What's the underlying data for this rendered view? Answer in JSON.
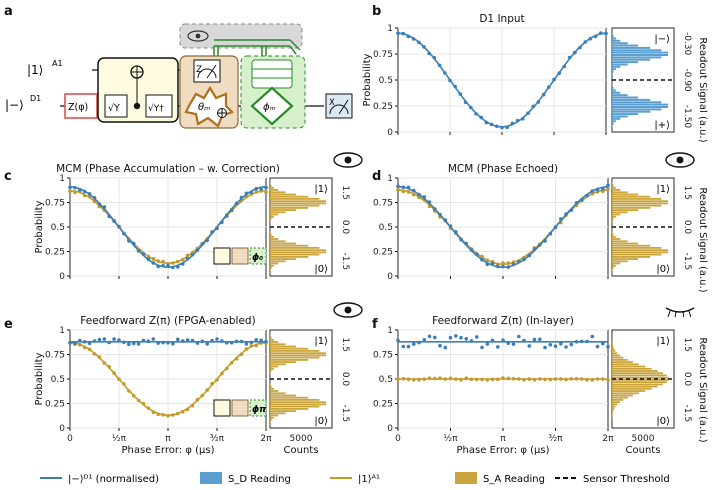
{
  "panel_letters": {
    "a": "a",
    "b": "b",
    "c": "c",
    "d": "d",
    "e": "e",
    "f": "f"
  },
  "circuit": {
    "ket_a1": "|1⟩",
    "ket_a1_sup": "A1",
    "ket_d1": "|−⟩",
    "ket_d1_sup": "D1",
    "z_gate": "Z(φ)",
    "sqrt_y": "√Y",
    "sqrt_y_dag": "√Y†",
    "theta": "θₘ",
    "phi": "ϕₘ",
    "z_meas": "Z",
    "x_meas": "X"
  },
  "colors": {
    "blue": "#3a7fb8",
    "gold": "#c39a2a",
    "hist_blue": "#5b9fd0",
    "hist_gold": "#caa43c"
  },
  "panels": {
    "b": {
      "title": "D1 Input",
      "ylabel": "Probability",
      "side_top": "|−⟩",
      "side_bot": "|+⟩",
      "hist_ticks": [
        "-0.30",
        "-0.90",
        "-1.50"
      ],
      "yticks": [
        "0",
        "0.25",
        "0.5",
        "0.75",
        "1"
      ]
    },
    "c": {
      "title": "MCM (Phase Accumulation – w. Correction)",
      "ylabel": "Probability",
      "side_top": "|1⟩",
      "side_bot": "|0⟩",
      "hist_ticks": [
        "1.5",
        "0.0",
        "-1.5"
      ],
      "badge": "ϕ₀",
      "yticks": [
        "0",
        "0.25",
        "0.5",
        "0.75",
        "1"
      ]
    },
    "d": {
      "title": "MCM (Phase Echoed)",
      "side_top": "|1⟩",
      "side_bot": "|0⟩",
      "hist_ticks": [
        "1.5",
        "0.0",
        "-1.5"
      ],
      "yticks": [
        "0",
        "0.25",
        "0.5",
        "0.75",
        "1"
      ]
    },
    "e": {
      "title": "Feedforward Z(π) (FPGA-enabled)",
      "ylabel": "Probability",
      "side_top": "|1⟩",
      "side_bot": "|0⟩",
      "hist_ticks": [
        "1.5",
        "0.0",
        "-1.5"
      ],
      "badge": "ϕπ",
      "yticks": [
        "0",
        "0.25",
        "0.5",
        "0.75",
        "1"
      ],
      "xlabel": "Phase Error: φ (μs)",
      "counts_label": "Counts",
      "counts_tick": "5000"
    },
    "f": {
      "title": "Feedforward Z(π) (In-layer)",
      "side_top": "|1⟩",
      "side_bot": "|0⟩",
      "hist_ticks": [
        "1.5",
        "0.0",
        "-1.5"
      ],
      "yticks": [
        "0",
        "0.25",
        "0.5",
        "0.75",
        "1"
      ],
      "xlabel": "Phase Error: φ (μs)",
      "counts_label": "Counts",
      "counts_tick": "5000"
    }
  },
  "readout_label": "Readout Signal (a.u.)",
  "xticks": [
    "0",
    "½π",
    "π",
    "³⁄₂π",
    "2π"
  ],
  "legend": [
    {
      "label": "|−⟩ᴰ¹ (normalised)",
      "kind": "line",
      "color": "#3a7fb8"
    },
    {
      "label": "S_D Reading",
      "kind": "patch",
      "color": "#5b9fd0"
    },
    {
      "label": "|1⟩ᴬ¹",
      "kind": "line",
      "color": "#c39a2a"
    },
    {
      "label": "S_A Reading",
      "kind": "patch",
      "color": "#caa43c"
    },
    {
      "label": "Sensor Threshold",
      "kind": "dash",
      "color": "#111"
    }
  ],
  "chart_data": [
    {
      "panel": "b",
      "type": "line",
      "title": "D1 Input",
      "ylabel": "Probability",
      "ylim": [
        0,
        1
      ],
      "xlim": [
        0,
        6.283
      ],
      "series": [
        {
          "name": "|−⟩ᴰ¹ (normalised)",
          "model": "0.5+0.45cos(x)",
          "x": [
            0,
            0.785,
            1.571,
            2.356,
            3.142,
            3.927,
            4.712,
            5.498,
            6.283
          ],
          "values": [
            0.95,
            0.82,
            0.5,
            0.18,
            0.05,
            0.18,
            0.5,
            0.82,
            0.95
          ]
        }
      ]
    },
    {
      "panel": "c",
      "type": "line",
      "title": "MCM (Phase Accumulation – w. Correction)",
      "ylabel": "Probability",
      "ylim": [
        0,
        1
      ],
      "xlim": [
        0,
        6.283
      ],
      "series": [
        {
          "name": "|−⟩ᴰ¹ (normalised)",
          "x": [
            0,
            0.785,
            1.571,
            2.356,
            3.142,
            3.927,
            4.712,
            5.498,
            6.283
          ],
          "values": [
            0.92,
            0.77,
            0.5,
            0.23,
            0.1,
            0.23,
            0.5,
            0.77,
            0.92
          ]
        },
        {
          "name": "|1⟩ᴬ¹",
          "x": [
            0,
            0.785,
            1.571,
            2.356,
            3.142,
            3.927,
            4.712,
            5.498,
            6.283
          ],
          "values": [
            0.88,
            0.76,
            0.5,
            0.26,
            0.14,
            0.26,
            0.5,
            0.76,
            0.88
          ]
        }
      ]
    },
    {
      "panel": "d",
      "type": "line",
      "title": "MCM (Phase Echoed)",
      "ylim": [
        0,
        1
      ],
      "xlim": [
        0,
        6.283
      ],
      "series": [
        {
          "name": "|−⟩ᴰ¹ (normalised)",
          "x": [
            0,
            0.785,
            1.571,
            2.356,
            3.142,
            3.927,
            4.712,
            5.498,
            6.283
          ],
          "values": [
            0.91,
            0.77,
            0.5,
            0.23,
            0.09,
            0.23,
            0.5,
            0.77,
            0.91
          ]
        },
        {
          "name": "|1⟩ᴬ¹",
          "x": [
            0,
            0.785,
            1.571,
            2.356,
            3.142,
            3.927,
            4.712,
            5.498,
            6.283
          ],
          "values": [
            0.88,
            0.76,
            0.5,
            0.26,
            0.13,
            0.26,
            0.5,
            0.76,
            0.88
          ]
        }
      ]
    },
    {
      "panel": "e",
      "type": "line",
      "title": "Feedforward Z(π) (FPGA-enabled)",
      "ylabel": "Probability",
      "xlabel": "Phase Error: φ (μs)",
      "ylim": [
        0,
        1
      ],
      "xlim": [
        0,
        6.283
      ],
      "series": [
        {
          "name": "|−⟩ᴰ¹ (normalised)",
          "x": [
            0,
            1.571,
            3.142,
            4.712,
            6.283
          ],
          "values": [
            0.88,
            0.88,
            0.88,
            0.88,
            0.88
          ]
        },
        {
          "name": "|1⟩ᴬ¹",
          "x": [
            0,
            0.785,
            1.571,
            2.356,
            3.142,
            3.927,
            4.712,
            5.498,
            6.283
          ],
          "values": [
            0.87,
            0.74,
            0.5,
            0.26,
            0.13,
            0.26,
            0.5,
            0.74,
            0.87
          ]
        }
      ]
    },
    {
      "panel": "f",
      "type": "line",
      "title": "Feedforward Z(π) (In-layer)",
      "xlabel": "Phase Error: φ (μs)",
      "ylim": [
        0,
        1
      ],
      "xlim": [
        0,
        6.283
      ],
      "series": [
        {
          "name": "|−⟩ᴰ¹ (normalised)",
          "x": [
            0,
            1.571,
            3.142,
            4.712,
            6.283
          ],
          "values": [
            0.88,
            0.88,
            0.88,
            0.88,
            0.88
          ]
        },
        {
          "name": "|1⟩ᴬ¹",
          "x": [
            0,
            1.571,
            3.142,
            4.712,
            6.283
          ],
          "values": [
            0.5,
            0.5,
            0.5,
            0.5,
            0.5
          ]
        }
      ]
    }
  ]
}
